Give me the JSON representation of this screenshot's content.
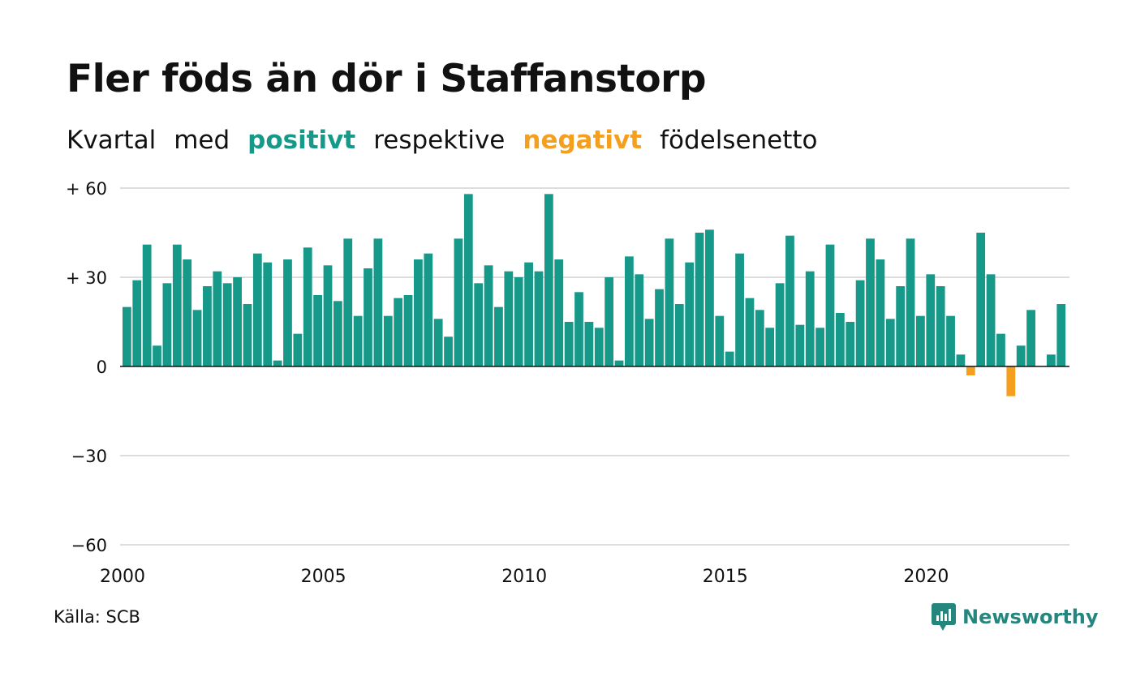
{
  "title": "Fler föds än dör i Staffanstorp",
  "subtitle": {
    "w1": "Kvartal",
    "w2": "med",
    "positive": "positivt",
    "w3": "respektive",
    "negative": "negativt",
    "w4": "födelsenetto"
  },
  "source": "Källa: SCB",
  "brand": "Newsworthy",
  "colors": {
    "positive": "#17998a",
    "negative": "#f59f1f",
    "grid": "#dddddd",
    "zero": "#111111",
    "brand": "#25867d"
  },
  "chart_data": {
    "type": "bar",
    "x_start": "2000 Q1",
    "frequency": "quarterly",
    "ylim": [
      -60,
      60
    ],
    "yticks": [
      60,
      30,
      0,
      -30,
      -60
    ],
    "ytick_labels": [
      "+ 60",
      "+ 30",
      "0",
      "−30",
      "−60"
    ],
    "xticks": [
      "2000",
      "2005",
      "2010",
      "2015",
      "2020"
    ],
    "grid": true,
    "values": [
      20,
      29,
      41,
      7,
      28,
      41,
      36,
      19,
      27,
      32,
      28,
      30,
      21,
      38,
      35,
      2,
      36,
      11,
      40,
      24,
      34,
      22,
      43,
      17,
      33,
      43,
      17,
      23,
      24,
      36,
      38,
      16,
      10,
      43,
      58,
      28,
      34,
      20,
      32,
      30,
      35,
      32,
      58,
      36,
      15,
      25,
      15,
      13,
      30,
      2,
      37,
      31,
      16,
      26,
      43,
      21,
      35,
      45,
      46,
      17,
      5,
      38,
      23,
      19,
      13,
      28,
      44,
      14,
      32,
      13,
      41,
      18,
      15,
      29,
      43,
      36,
      16,
      27,
      43,
      17,
      31,
      27,
      17,
      4,
      -3,
      45,
      31,
      11,
      -10,
      7,
      19,
      0,
      4,
      21
    ]
  }
}
